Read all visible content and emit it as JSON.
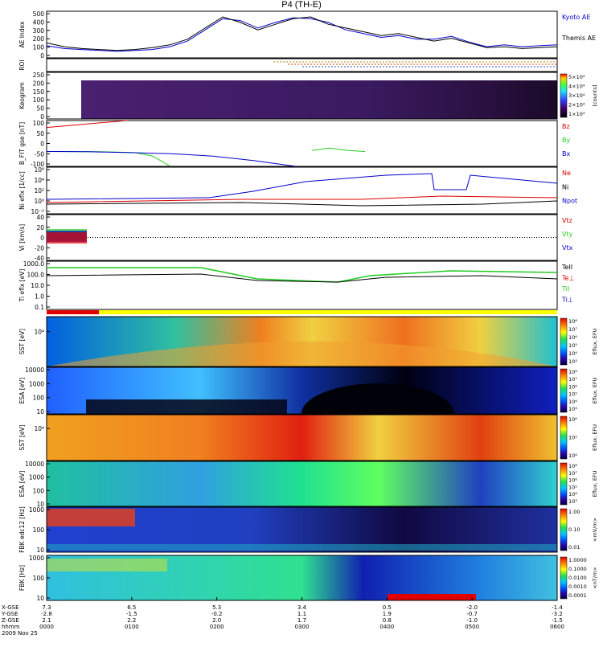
{
  "title": "P4 (TH-E)",
  "colors": {
    "accent_blue": "#0000cc",
    "red": "#dd0000",
    "green": "#22cc22",
    "black": "#000000"
  },
  "chart_data": [
    {
      "type": "line",
      "id": "ae",
      "ylabel": "AE Index",
      "ylim": [
        0,
        500
      ],
      "yticks": [
        "500",
        "400",
        "300",
        "200",
        "100",
        "0"
      ],
      "legend": [
        "Kyoto AE",
        "Themis AE"
      ],
      "series": [
        {
          "name": "Kyoto AE",
          "color": "#0000cc",
          "values": [
            130,
            100,
            90,
            80,
            70,
            80,
            90,
            120,
            180,
            300,
            420,
            400,
            320,
            380,
            430,
            420,
            380,
            300,
            260,
            220,
            240,
            200,
            200,
            230,
            170,
            120,
            140,
            120,
            130,
            140
          ]
        },
        {
          "name": "Themis AE",
          "color": "#000000",
          "values": [
            160,
            120,
            100,
            90,
            80,
            90,
            110,
            140,
            200,
            320,
            440,
            380,
            300,
            360,
            420,
            440,
            360,
            320,
            280,
            240,
            260,
            220,
            180,
            210,
            160,
            110,
            120,
            100,
            110,
            120
          ]
        }
      ]
    },
    {
      "type": "bar",
      "id": "roi",
      "ylabel": "ROI",
      "yticks": []
    },
    {
      "type": "heatmap",
      "id": "keogram",
      "ylabel": "Keogram",
      "yticks": [
        "250",
        "200",
        "150",
        "100",
        "50",
        "0"
      ],
      "colorbar": {
        "ticks": [
          "5×10⁴",
          "4×10⁴",
          "3×10⁴",
          "2×10⁴",
          "1×10⁴"
        ],
        "label": "[counts]"
      }
    },
    {
      "type": "line",
      "id": "bfit",
      "ylabel": "B_FIT gse [nT]",
      "ylim": [
        -100,
        100
      ],
      "yticks": [
        "100",
        "50",
        "0",
        "-50",
        "-100"
      ],
      "legend": [
        "Bz",
        "By",
        "Bx"
      ],
      "series": [
        {
          "name": "Bz",
          "color": "#dd0000",
          "values": [
            70,
            80,
            90,
            100
          ]
        },
        {
          "name": "By",
          "color": "#22cc22",
          "values": [
            -35,
            -35,
            -36,
            -36,
            -38,
            -40,
            -55,
            -100,
            null,
            null,
            null,
            null,
            null,
            null,
            null,
            -30,
            -20,
            -30,
            -35
          ]
        },
        {
          "name": "Bx",
          "color": "#0000cc",
          "values": [
            -35,
            -36,
            -40,
            -45,
            -55,
            -75,
            -100
          ]
        }
      ]
    },
    {
      "type": "line",
      "id": "ni",
      "ylabel": "Ni eflx [1/cc]",
      "yticks": [
        "10⁶",
        "10⁴",
        "10²",
        "10⁰",
        "10⁻²"
      ],
      "legend": [
        "Ne",
        "Ni",
        "Npot"
      ]
    },
    {
      "type": "line",
      "id": "vi",
      "ylabel": "Vi [km/s]",
      "ylim": [
        -40,
        40
      ],
      "yticks": [
        "40",
        "20",
        "0",
        "-20",
        "-40"
      ],
      "legend": [
        "Vtz",
        "Vty",
        "Vtx"
      ]
    },
    {
      "type": "line",
      "id": "ti",
      "ylabel": "Ti eflx [eV]",
      "yticks": [
        "1000.0",
        "100.0",
        "10.0",
        "1.0",
        "0.1"
      ],
      "legend": [
        "TeII",
        "Te⊥",
        "TiI",
        "Ti⊥"
      ]
    },
    {
      "type": "heatmap",
      "id": "sst_e",
      "ylabel": "SST [eV]",
      "yticks": [
        "10⁴"
      ],
      "colorbar": {
        "ticks": [
          "10⁸",
          "10⁷",
          "10⁶",
          "10⁵",
          "10⁴",
          "10³"
        ],
        "label": "Eflux, EFU"
      }
    },
    {
      "type": "heatmap",
      "id": "esa_e",
      "ylabel": "ESA [eV]",
      "yticks": [
        "10000",
        "1000",
        "100",
        "10"
      ],
      "colorbar": {
        "ticks": [
          "10⁸",
          "10⁷",
          "10⁶",
          "10⁵",
          "10⁴",
          "10³"
        ],
        "label": "Eflux, EFU"
      }
    },
    {
      "type": "heatmap",
      "id": "sst_i",
      "ylabel": "SST [eV]",
      "yticks": [
        "10⁴"
      ],
      "colorbar": {
        "ticks": [
          "10⁶",
          "10⁵",
          "10⁴"
        ],
        "label": "Eflux, EFU"
      }
    },
    {
      "type": "heatmap",
      "id": "esa_i",
      "ylabel": "ESA [eV]",
      "yticks": [
        "10000",
        "1000",
        "100",
        "10"
      ],
      "colorbar": {
        "ticks": [
          "10⁸",
          "10⁷",
          "10⁶",
          "10⁵",
          "10⁴",
          "10³"
        ],
        "label": "Eflux, EFU"
      }
    },
    {
      "type": "heatmap",
      "id": "fbk1",
      "ylabel": "FBK edc12 [Hz]",
      "yticks": [
        "1000",
        "100",
        "10"
      ],
      "colorbar": {
        "ticks": [
          "1.00",
          "0.10",
          "0.01"
        ],
        "label": "<mV/m>"
      }
    },
    {
      "type": "heatmap",
      "id": "fbk2",
      "ylabel": "FBK [Hz]",
      "yticks": [
        "1000",
        "100",
        "10"
      ],
      "colorbar": {
        "ticks": [
          "1.0000",
          "0.1000",
          "0.0100",
          "0.0010",
          "0.0001"
        ],
        "label": "<nT/m>"
      }
    }
  ],
  "xaxis": {
    "row_labels": [
      "X-GSE",
      "Y-GSE",
      "Z-GSE",
      "hhmm",
      "2009 Nov 25"
    ],
    "columns": [
      {
        "x": "7.3",
        "y": "-2.8",
        "z": "2.1",
        "t": "0000"
      },
      {
        "x": "6.5",
        "y": "-1.5",
        "z": "2.2",
        "t": "0100"
      },
      {
        "x": "5.3",
        "y": "-0.2",
        "z": "2.0",
        "t": "0200"
      },
      {
        "x": "3.4",
        "y": "1.1",
        "z": "1.7",
        "t": "0300"
      },
      {
        "x": "0.5",
        "y": "1.9",
        "z": "0.8",
        "t": "0400"
      },
      {
        "x": "-2.0",
        "y": "-0.7",
        "z": "-1.0",
        "t": "0500"
      },
      {
        "x": "-1.4",
        "y": "-3.2",
        "z": "-1.5",
        "t": "0600"
      }
    ]
  }
}
